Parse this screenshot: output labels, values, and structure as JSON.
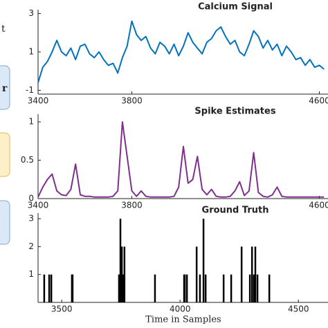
{
  "side_labels": [
    "t",
    "r"
  ],
  "chart_data": [
    {
      "type": "line",
      "title": "Calcium Signal",
      "color": "#0072bd",
      "x": [
        3400,
        3420,
        3440,
        3460,
        3480,
        3500,
        3520,
        3540,
        3560,
        3580,
        3600,
        3620,
        3640,
        3660,
        3680,
        3700,
        3720,
        3740,
        3760,
        3780,
        3800,
        3820,
        3840,
        3860,
        3880,
        3900,
        3920,
        3940,
        3960,
        3980,
        4000,
        4020,
        4040,
        4060,
        4080,
        4100,
        4120,
        4140,
        4160,
        4180,
        4200,
        4220,
        4240,
        4260,
        4280,
        4300,
        4320,
        4340,
        4360,
        4380,
        4400,
        4420,
        4440,
        4460,
        4480,
        4500,
        4520,
        4540,
        4560,
        4580,
        4600,
        4620
      ],
      "values": [
        -0.6,
        0.2,
        0.5,
        1.0,
        1.6,
        1.0,
        0.8,
        1.2,
        0.6,
        1.3,
        1.4,
        0.9,
        0.7,
        1.0,
        0.6,
        0.3,
        0.4,
        -0.1,
        0.7,
        1.3,
        2.6,
        1.9,
        1.6,
        1.8,
        1.2,
        0.9,
        1.5,
        1.3,
        0.9,
        1.4,
        0.8,
        1.3,
        2.0,
        1.5,
        1.2,
        0.9,
        1.5,
        1.7,
        2.1,
        2.3,
        1.8,
        1.4,
        1.6,
        1.0,
        0.8,
        1.4,
        2.1,
        1.8,
        1.2,
        1.6,
        1.1,
        1.4,
        0.8,
        1.3,
        1.0,
        0.6,
        0.7,
        0.3,
        0.6,
        0.2,
        0.3,
        0.1
      ],
      "xlim": [
        3400,
        4637
      ],
      "xticks": [
        3400,
        3800,
        4600
      ],
      "ylim": [
        -1.2,
        3.2
      ],
      "yticks": [
        -1,
        1,
        3
      ]
    },
    {
      "type": "line",
      "title": "Spike Estimates",
      "color": "#7e2f8e",
      "x": [
        3400,
        3420,
        3440,
        3460,
        3480,
        3500,
        3520,
        3540,
        3560,
        3580,
        3600,
        3620,
        3640,
        3660,
        3680,
        3700,
        3720,
        3740,
        3760,
        3780,
        3800,
        3820,
        3840,
        3860,
        3880,
        3900,
        3920,
        3940,
        3960,
        3980,
        4000,
        4020,
        4040,
        4060,
        4080,
        4100,
        4120,
        4140,
        4160,
        4180,
        4200,
        4220,
        4240,
        4260,
        4280,
        4300,
        4320,
        4340,
        4360,
        4380,
        4400,
        4420,
        4440,
        4460,
        4480,
        4500,
        4520,
        4540,
        4560,
        4580,
        4600,
        4620
      ],
      "values": [
        0.02,
        0.15,
        0.25,
        0.32,
        0.1,
        0.05,
        0.04,
        0.12,
        0.45,
        0.05,
        0.03,
        0.03,
        0.02,
        0.02,
        0.02,
        0.02,
        0.03,
        0.1,
        1.0,
        0.55,
        0.1,
        0.03,
        0.1,
        0.03,
        0.02,
        0.02,
        0.02,
        0.02,
        0.02,
        0.03,
        0.15,
        0.68,
        0.2,
        0.25,
        0.55,
        0.12,
        0.05,
        0.12,
        0.03,
        0.02,
        0.02,
        0.03,
        0.1,
        0.22,
        0.04,
        0.1,
        0.6,
        0.08,
        0.03,
        0.02,
        0.05,
        0.15,
        0.03,
        0.02,
        0.02,
        0.02,
        0.02,
        0.02,
        0.02,
        0.02,
        0.02,
        0.02
      ],
      "xlim": [
        3400,
        4637
      ],
      "xticks": [
        3400,
        3800,
        4600
      ],
      "ylim": [
        0,
        1.1
      ],
      "yticks": [
        0,
        0.5,
        1
      ]
    },
    {
      "type": "stem",
      "title": "Ground Truth",
      "color": "#000000",
      "x_label": "Time in Samples",
      "x": [
        3426,
        3447,
        3456,
        3543,
        3546,
        3742,
        3748,
        3754,
        3760,
        3765,
        3894,
        4017,
        4020,
        4029,
        4070,
        4084,
        4099,
        4108,
        4184,
        4216,
        4260,
        4295,
        4304,
        4312,
        4318,
        4327,
        4377
      ],
      "values": [
        1,
        1,
        1,
        1,
        1,
        1,
        3,
        2,
        1,
        2,
        1,
        1,
        1,
        1,
        2,
        1,
        3,
        1,
        1,
        1,
        2,
        1,
        2,
        1,
        2,
        1,
        1
      ],
      "xlim": [
        3400,
        4625
      ],
      "xticks": [
        3500,
        4000,
        4500
      ],
      "ylim": [
        0,
        3.2
      ],
      "yticks": [
        1,
        2,
        3
      ]
    }
  ]
}
